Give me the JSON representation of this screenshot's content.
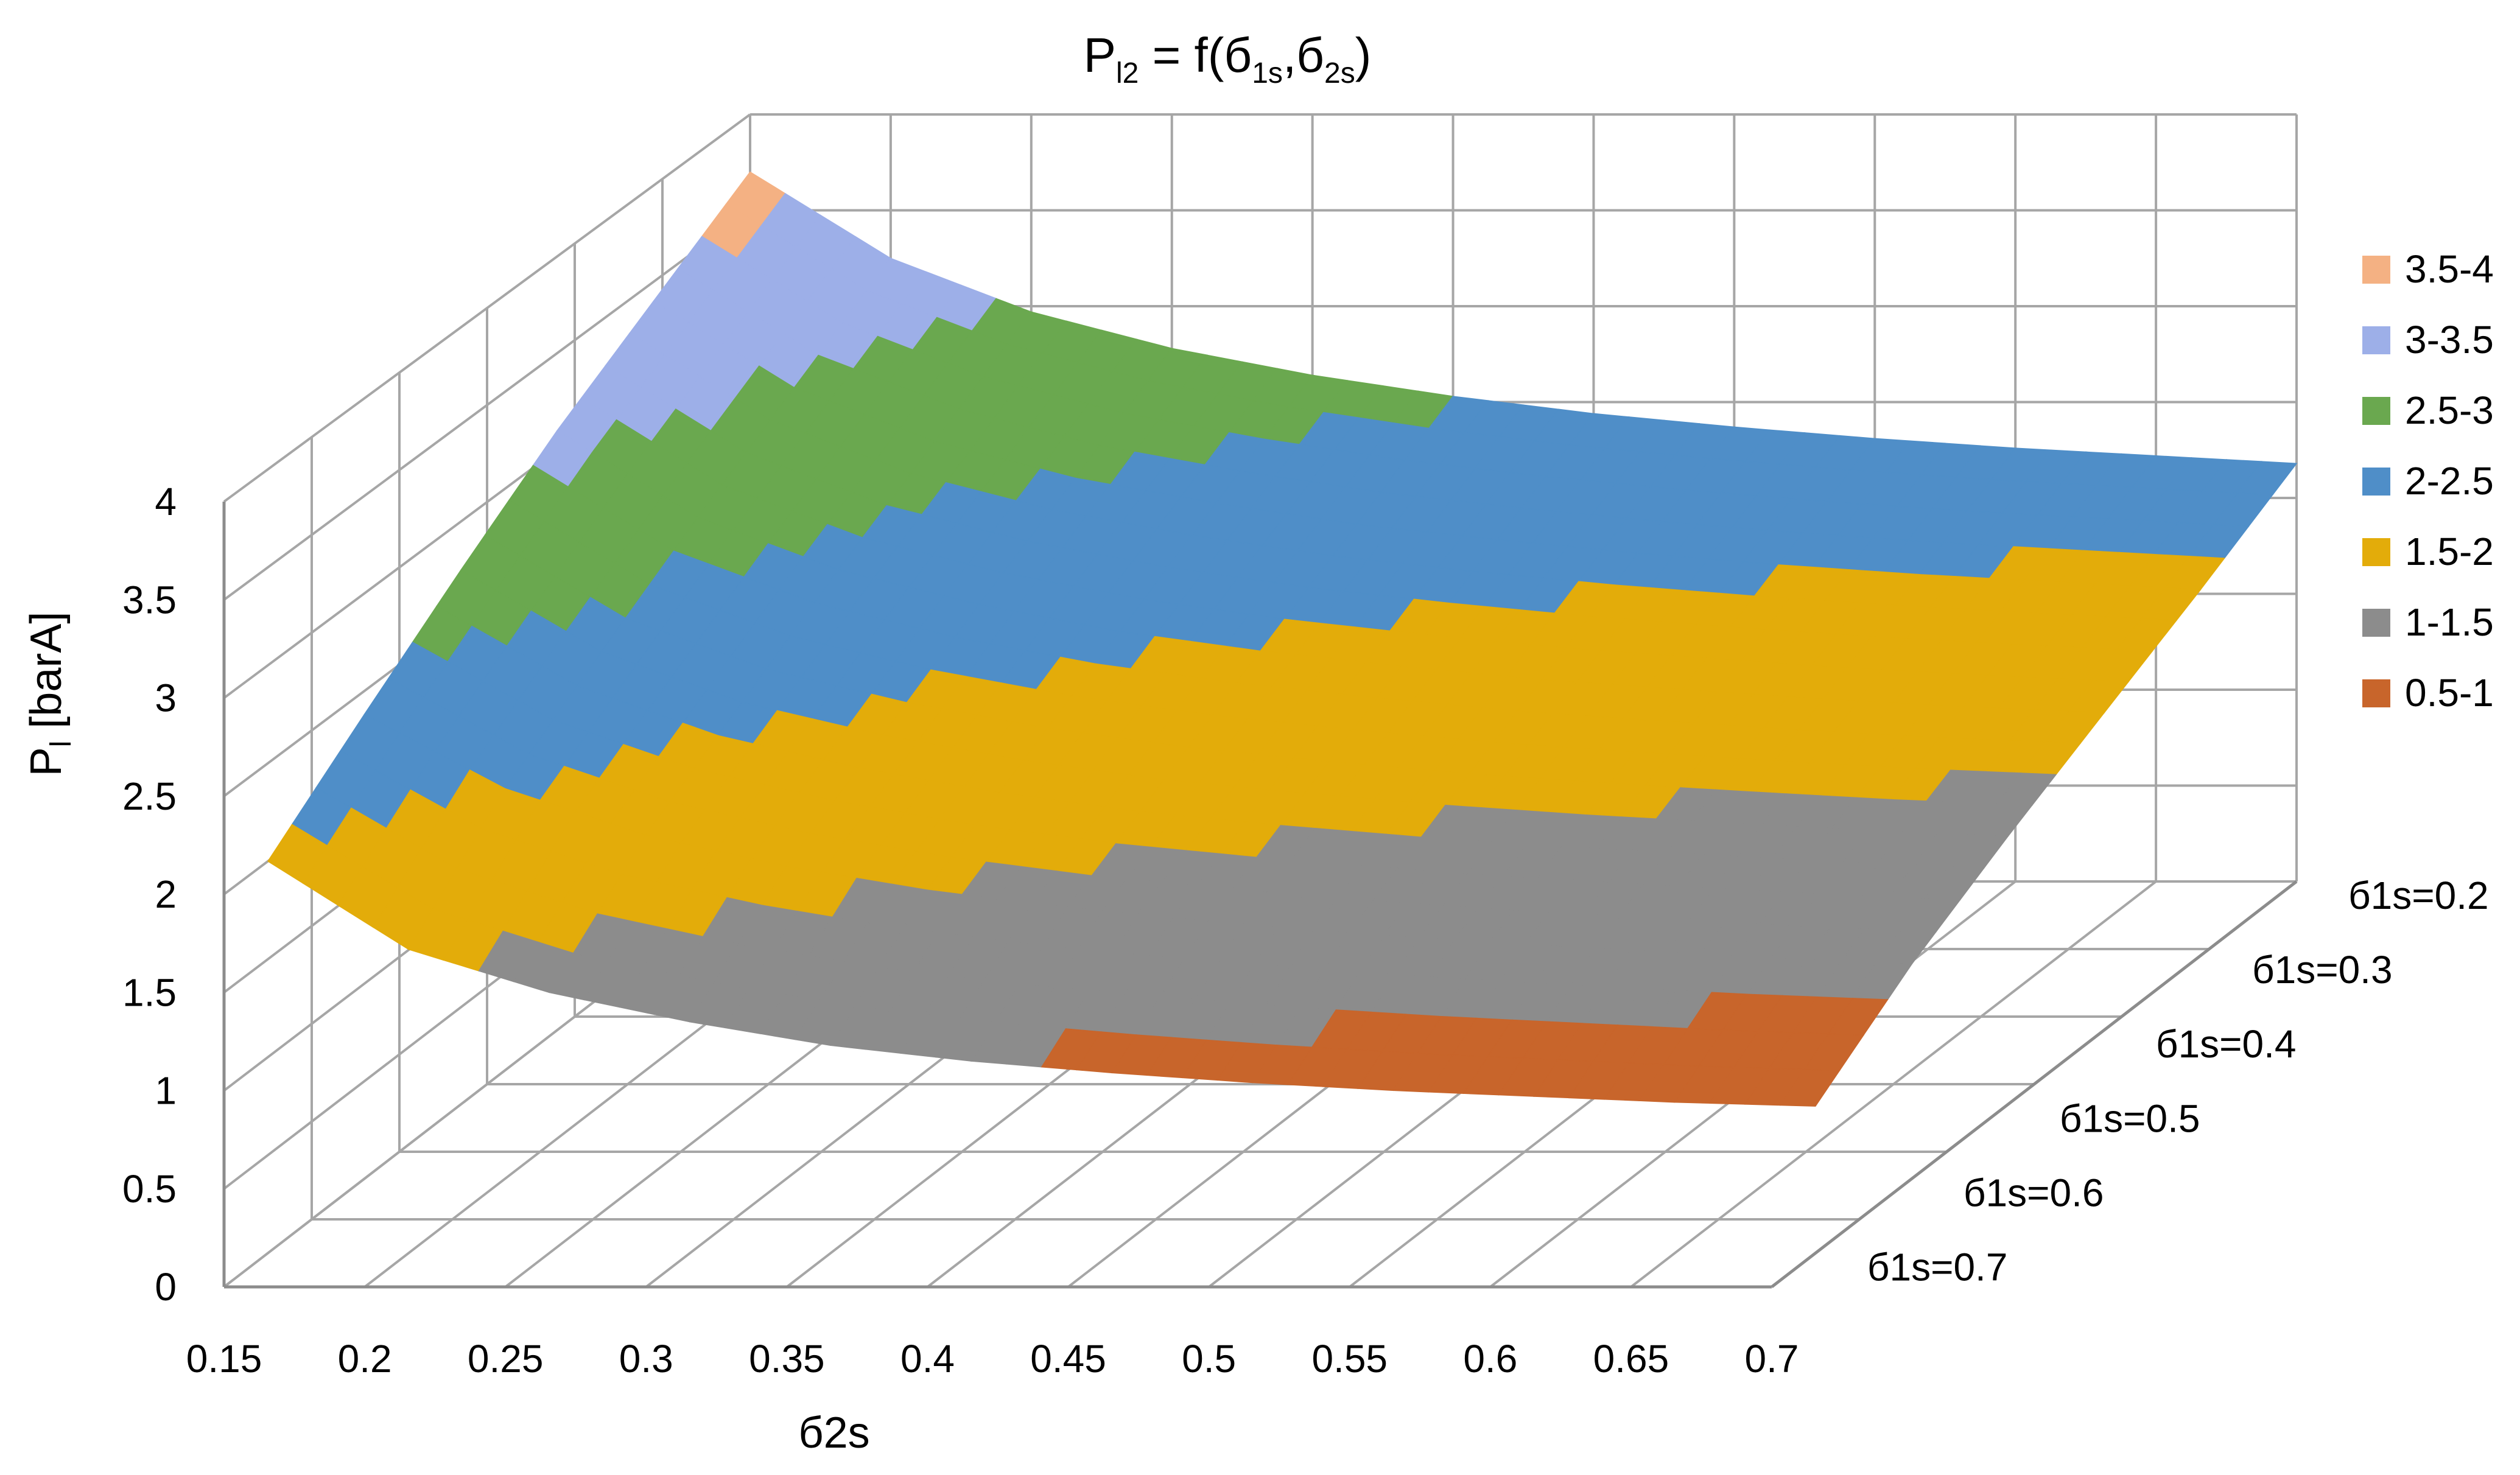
{
  "chart_data": {
    "type": "surface",
    "title": {
      "main": "P",
      "main_sub": "l2",
      "rest": " = f(",
      "a": "б",
      "a_sub": "1s",
      "comma": ",",
      "b": "б",
      "b_sub": "2s",
      "close": ")"
    },
    "zlabel": {
      "main": "P",
      "sub": "l",
      "rest": " [barA]"
    },
    "xlabel": "б2s",
    "x_ticks": [
      "0.15",
      "0.2",
      "0.25",
      "0.3",
      "0.35",
      "0.4",
      "0.45",
      "0.5",
      "0.55",
      "0.6",
      "0.65",
      "0.7"
    ],
    "x_values": [
      0.15,
      0.2,
      0.25,
      0.3,
      0.35,
      0.4,
      0.45,
      0.5,
      0.55,
      0.6,
      0.65,
      0.7
    ],
    "z_ticks": [
      "0",
      "0.5",
      "1",
      "1.5",
      "2",
      "2.5",
      "3",
      "3.5",
      "4"
    ],
    "zlim": [
      0,
      4
    ],
    "series": [
      {
        "name": "б1s=0.2",
        "s1": 0.2,
        "values": [
          3.7,
          3.25,
          2.97,
          2.78,
          2.64,
          2.53,
          2.44,
          2.37,
          2.31,
          2.26,
          2.22,
          2.18
        ]
      },
      {
        "name": "б1s=0.3",
        "s1": 0.3,
        "values": [
          3.4,
          2.95,
          2.67,
          2.48,
          2.35,
          2.24,
          2.16,
          2.09,
          2.03,
          1.98,
          1.94,
          1.9
        ]
      },
      {
        "name": "б1s=0.4",
        "s1": 0.4,
        "values": [
          3.1,
          2.65,
          2.38,
          2.2,
          2.06,
          1.96,
          1.88,
          1.81,
          1.76,
          1.71,
          1.67,
          1.64
        ]
      },
      {
        "name": "б1s=0.5",
        "s1": 0.5,
        "values": [
          2.75,
          2.33,
          2.07,
          1.9,
          1.77,
          1.67,
          1.6,
          1.54,
          1.49,
          1.45,
          1.41,
          1.38
        ]
      },
      {
        "name": "б1s=0.6",
        "s1": 0.6,
        "values": [
          2.38,
          2.0,
          1.76,
          1.6,
          1.48,
          1.39,
          1.32,
          1.26,
          1.21,
          1.17,
          1.13,
          1.1
        ]
      },
      {
        "name": "б1s=0.7",
        "s1": 0.7,
        "values": [
          2.0,
          1.55,
          1.33,
          1.18,
          1.06,
          0.98,
          0.92,
          0.87,
          0.83,
          0.8,
          0.77,
          0.75
        ]
      }
    ],
    "legend": [
      {
        "label": "3.5-4",
        "min": 3.5,
        "max": 4.0,
        "color": "#f4b183"
      },
      {
        "label": "3-3.5",
        "min": 3.0,
        "max": 3.5,
        "color": "#9dafe8"
      },
      {
        "label": "2.5-3",
        "min": 2.5,
        "max": 3.0,
        "color": "#6aa84f"
      },
      {
        "label": "2-2.5",
        "min": 2.0,
        "max": 2.5,
        "color": "#4f8ec8"
      },
      {
        "label": "1.5-2",
        "min": 1.5,
        "max": 2.0,
        "color": "#e3ac0a"
      },
      {
        "label": "1-1.5",
        "min": 1.0,
        "max": 1.5,
        "color": "#8c8c8c"
      },
      {
        "label": "0.5-1",
        "min": 0.5,
        "max": 1.0,
        "color": "#c8652b"
      }
    ],
    "legend_position": "right",
    "grid": true
  }
}
